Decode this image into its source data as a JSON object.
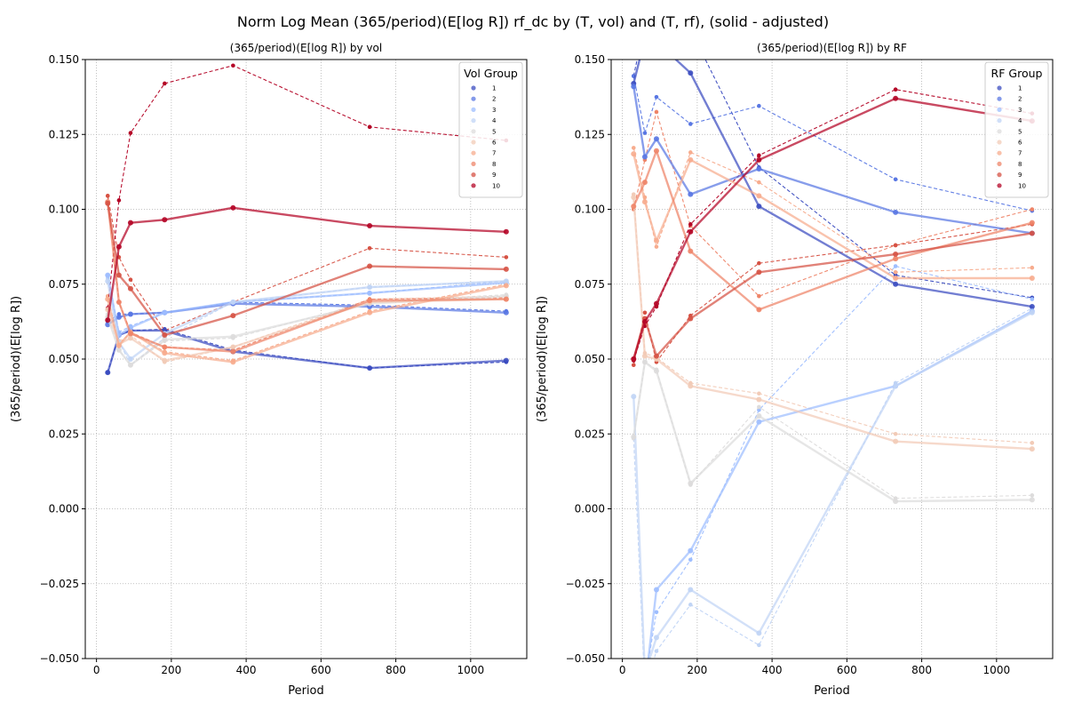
{
  "figure": {
    "suptitle": "Norm Log Mean (365/period)(E[log R]) rf_dc by (T, vol) and (T, rf), (solid - adjusted)"
  },
  "colors": {
    "groups": [
      "#3b4cc0",
      "#5977e3",
      "#7b9ff9",
      "#9ebeff",
      "#c0d4f5",
      "#dddcdc",
      "#f2cbb7",
      "#f7ac8e",
      "#ee8468",
      "#d65244",
      "#b40426"
    ],
    "grid": "#b0b0b0",
    "axis": "#000000"
  },
  "chart_data": [
    {
      "type": "line",
      "title": "(365/period)(E[log R]) by vol",
      "xlabel": "Period",
      "ylabel": "(365/period)(E[log R])",
      "xlim": [
        -30,
        1150
      ],
      "ylim": [
        -0.05,
        0.15
      ],
      "xticks": [
        0,
        200,
        400,
        600,
        800,
        1000
      ],
      "yticks": [
        -0.05,
        -0.025,
        0,
        0.025,
        0.05,
        0.075,
        0.1,
        0.125,
        0.15
      ],
      "xtick_labels": [
        "0",
        "200",
        "400",
        "600",
        "800",
        "1000"
      ],
      "ytick_labels": [
        "−0.050",
        "−0.025",
        "0.000",
        "0.025",
        "0.050",
        "0.075",
        "0.100",
        "0.125",
        "0.150"
      ],
      "grid": true,
      "x": [
        30,
        60,
        91,
        182,
        365,
        730,
        1095
      ],
      "legend": {
        "title": "Vol Group",
        "location": "upper right",
        "labels": [
          "1",
          "2",
          "3",
          "4",
          "5",
          "6",
          "7",
          "8",
          "9",
          "10"
        ]
      },
      "solid_label": "adjusted",
      "series": [
        {
          "name": "1",
          "color_index": 0,
          "values": [
            0.0455,
            0.058,
            0.0595,
            0.0595,
            0.0525,
            0.047,
            0.0495
          ]
        },
        {
          "name": "2",
          "color_index": 1,
          "values": [
            0.0615,
            0.064,
            0.065,
            0.0655,
            0.0685,
            0.0675,
            0.0655
          ]
        },
        {
          "name": "3",
          "color_index": 3,
          "values": [
            0.078,
            0.058,
            0.0605,
            0.0655,
            0.069,
            0.072,
            0.0755
          ]
        },
        {
          "name": "4",
          "color_index": 4,
          "values": [
            0.076,
            0.0555,
            0.05,
            0.0585,
            0.069,
            0.074,
            0.076
          ]
        },
        {
          "name": "5",
          "color_index": 5,
          "values": [
            0.064,
            0.053,
            0.048,
            0.0565,
            0.0575,
            0.0685,
            0.071
          ]
        },
        {
          "name": "6",
          "color_index": 6,
          "values": [
            0.0665,
            0.055,
            0.057,
            0.0495,
            0.054,
            0.069,
            0.07
          ]
        },
        {
          "name": "7",
          "color_index": 7,
          "values": [
            0.07,
            0.0545,
            0.059,
            0.052,
            0.049,
            0.0655,
            0.0745
          ]
        },
        {
          "name": "8",
          "color_index": 8,
          "values": [
            0.1025,
            0.069,
            0.0585,
            0.054,
            0.0525,
            0.0695,
            0.07
          ]
        },
        {
          "name": "9",
          "color_index": 9,
          "values": [
            0.102,
            0.078,
            0.0735,
            0.058,
            0.0645,
            0.081,
            0.08
          ]
        },
        {
          "name": "10",
          "color_index": 10,
          "values": [
            0.063,
            0.0875,
            0.0955,
            0.0965,
            0.1005,
            0.0945,
            0.0925
          ]
        }
      ],
      "dashed_series": [
        {
          "name": "1",
          "color_index": 0,
          "values": [
            0.0455,
            0.058,
            0.0595,
            0.06,
            0.053,
            0.047,
            0.049
          ]
        },
        {
          "name": "2",
          "color_index": 1,
          "values": [
            0.0625,
            0.065,
            0.065,
            0.0655,
            0.069,
            0.068,
            0.066
          ]
        },
        {
          "name": "3",
          "color_index": 3,
          "values": [
            0.078,
            0.059,
            0.061,
            0.0655,
            0.069,
            0.072,
            0.076
          ]
        },
        {
          "name": "4",
          "color_index": 4,
          "values": [
            0.077,
            0.056,
            0.048,
            0.057,
            0.069,
            0.074,
            0.076
          ]
        },
        {
          "name": "5",
          "color_index": 5,
          "values": [
            0.065,
            0.053,
            0.048,
            0.056,
            0.057,
            0.069,
            0.0715
          ]
        },
        {
          "name": "6",
          "color_index": 6,
          "values": [
            0.067,
            0.056,
            0.058,
            0.049,
            0.054,
            0.07,
            0.071
          ]
        },
        {
          "name": "7",
          "color_index": 7,
          "values": [
            0.071,
            0.055,
            0.059,
            0.0525,
            0.0495,
            0.066,
            0.075
          ]
        },
        {
          "name": "8",
          "color_index": 8,
          "values": [
            0.1045,
            0.069,
            0.059,
            0.054,
            0.053,
            0.07,
            0.0705
          ]
        },
        {
          "name": "9",
          "color_index": 9,
          "values": [
            0.1045,
            0.084,
            0.0765,
            0.0595,
            0.069,
            0.087,
            0.084
          ]
        },
        {
          "name": "10",
          "color_index": 10,
          "values": [
            0.067,
            0.103,
            0.1255,
            0.142,
            0.148,
            0.1275,
            0.123
          ]
        }
      ]
    },
    {
      "type": "line",
      "title": "(365/period)(E[log R]) by RF",
      "xlabel": "Period",
      "ylabel": "(365/period)(E[log R])",
      "xlim": [
        -30,
        1150
      ],
      "ylim": [
        -0.05,
        0.15
      ],
      "xticks": [
        0,
        200,
        400,
        600,
        800,
        1000
      ],
      "yticks": [
        -0.05,
        -0.025,
        0,
        0.025,
        0.05,
        0.075,
        0.1,
        0.125,
        0.15
      ],
      "xtick_labels": [
        "0",
        "200",
        "400",
        "600",
        "800",
        "1000"
      ],
      "ytick_labels": [
        "−0.050",
        "−0.025",
        "0.000",
        "0.025",
        "0.050",
        "0.075",
        "0.100",
        "0.125",
        "0.150"
      ],
      "grid": true,
      "x": [
        30,
        60,
        91,
        182,
        365,
        730,
        1095
      ],
      "legend": {
        "title": "RF Group",
        "location": "upper right",
        "labels": [
          "1",
          "2",
          "3",
          "4",
          "5",
          "6",
          "7",
          "8",
          "9",
          "10"
        ]
      },
      "solid_label": "adjusted",
      "series": [
        {
          "name": "1",
          "color_index": 0,
          "values": [
            0.142,
            0.157,
            0.156,
            0.1455,
            0.101,
            0.075,
            0.0675
          ]
        },
        {
          "name": "2",
          "color_index": 1,
          "values": [
            0.141,
            0.1175,
            0.1235,
            0.105,
            0.1135,
            0.099,
            0.092
          ]
        },
        {
          "name": "3",
          "color_index": 3,
          "values": [
            -0.055,
            -0.06,
            -0.027,
            -0.014,
            0.029,
            0.041,
            0.066
          ]
        },
        {
          "name": "4",
          "color_index": 4,
          "values": [
            0.0375,
            -0.055,
            -0.043,
            -0.027,
            -0.0415,
            0.041,
            0.0655
          ]
        },
        {
          "name": "5",
          "color_index": 5,
          "values": [
            0.024,
            0.049,
            0.046,
            0.0085,
            0.031,
            0.0025,
            0.003
          ]
        },
        {
          "name": "6",
          "color_index": 6,
          "values": [
            0.104,
            0.051,
            0.05,
            0.041,
            0.0365,
            0.0225,
            0.02
          ]
        },
        {
          "name": "7",
          "color_index": 7,
          "values": [
            0.1185,
            0.1025,
            0.0895,
            0.1165,
            0.1045,
            0.077,
            0.077
          ]
        },
        {
          "name": "8",
          "color_index": 8,
          "values": [
            0.101,
            0.109,
            0.1195,
            0.086,
            0.0665,
            0.0835,
            0.0955
          ]
        },
        {
          "name": "9",
          "color_index": 9,
          "values": [
            0.05,
            0.0635,
            0.051,
            0.0635,
            0.079,
            0.085,
            0.092
          ]
        },
        {
          "name": "10",
          "color_index": 10,
          "values": [
            0.05,
            0.0625,
            0.0685,
            0.0925,
            0.1165,
            0.137,
            0.1295
          ]
        }
      ],
      "dashed_series": [
        {
          "name": "1",
          "color_index": 0,
          "values": [
            0.1445,
            0.162,
            0.158,
            0.16,
            0.114,
            0.078,
            0.0705
          ]
        },
        {
          "name": "2",
          "color_index": 1,
          "values": [
            0.1445,
            0.1255,
            0.1375,
            0.1285,
            0.1345,
            0.11,
            0.0995
          ]
        },
        {
          "name": "3",
          "color_index": 3,
          "values": [
            -0.058,
            -0.058,
            -0.0345,
            -0.017,
            0.033,
            0.081,
            0.07
          ]
        },
        {
          "name": "4",
          "color_index": 4,
          "values": [
            0.0235,
            -0.06,
            -0.0475,
            -0.032,
            -0.0455,
            0.042,
            0.067
          ]
        },
        {
          "name": "5",
          "color_index": 5,
          "values": [
            0.0235,
            0.049,
            0.0465,
            0.008,
            0.034,
            0.0035,
            0.0045
          ]
        },
        {
          "name": "6",
          "color_index": 6,
          "values": [
            0.105,
            0.052,
            0.0505,
            0.042,
            0.0385,
            0.025,
            0.022
          ]
        },
        {
          "name": "7",
          "color_index": 7,
          "values": [
            0.1205,
            0.104,
            0.0875,
            0.119,
            0.109,
            0.079,
            0.0805
          ]
        },
        {
          "name": "8",
          "color_index": 8,
          "values": [
            0.1,
            0.1165,
            0.1325,
            0.0945,
            0.071,
            0.088,
            0.1
          ]
        },
        {
          "name": "9",
          "color_index": 9,
          "values": [
            0.048,
            0.0655,
            0.049,
            0.0645,
            0.082,
            0.088,
            0.095
          ]
        },
        {
          "name": "10",
          "color_index": 10,
          "values": [
            0.0495,
            0.061,
            0.0675,
            0.095,
            0.118,
            0.14,
            0.132
          ]
        }
      ]
    }
  ]
}
